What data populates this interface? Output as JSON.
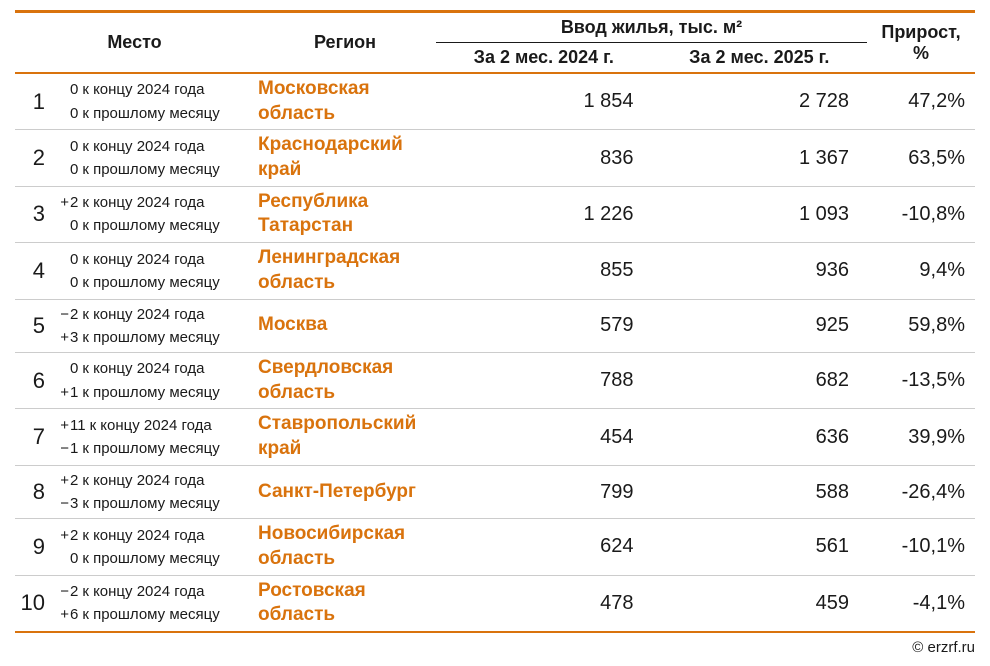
{
  "styling": {
    "accent_color": "#d9730d",
    "text_color": "#1a1a1a",
    "row_border_color": "#cccccc",
    "background_color": "#ffffff",
    "region_link_color": "#d9730d",
    "header_fontsize": 18,
    "rank_fontsize": 22,
    "change_fontsize": 15,
    "region_fontsize": 19,
    "num_fontsize": 20
  },
  "header": {
    "place": "Место",
    "region": "Регион",
    "housing_group": "Ввод жилья, тыс. м²",
    "period1": "За 2 мес. 2024 г.",
    "period2": "За 2 мес. 2025 г.",
    "growth": "Прирост, %"
  },
  "change_suffixes": {
    "year": "к концу 2024 года",
    "month": "к прошлому месяцу"
  },
  "rows": [
    {
      "rank": "1",
      "year_sign": "",
      "year_num": "0",
      "month_sign": "",
      "month_num": "0",
      "region": "Московская область",
      "v2024": "1 854",
      "v2025": "2 728",
      "growth": "47,2%"
    },
    {
      "rank": "2",
      "year_sign": "",
      "year_num": "0",
      "month_sign": "",
      "month_num": "0",
      "region": "Краснодарский край",
      "v2024": "836",
      "v2025": "1 367",
      "growth": "63,5%"
    },
    {
      "rank": "3",
      "year_sign": "+",
      "year_num": "2",
      "month_sign": "",
      "month_num": "0",
      "region": "Республика Татарстан",
      "v2024": "1 226",
      "v2025": "1 093",
      "growth": "-10,8%"
    },
    {
      "rank": "4",
      "year_sign": "",
      "year_num": "0",
      "month_sign": "",
      "month_num": "0",
      "region": "Ленинградская область",
      "v2024": "855",
      "v2025": "936",
      "growth": "9,4%"
    },
    {
      "rank": "5",
      "year_sign": "−",
      "year_num": "2",
      "month_sign": "+",
      "month_num": "3",
      "region": "Москва",
      "v2024": "579",
      "v2025": "925",
      "growth": "59,8%"
    },
    {
      "rank": "6",
      "year_sign": "",
      "year_num": "0",
      "month_sign": "+",
      "month_num": "1",
      "region": "Свердловская область",
      "v2024": "788",
      "v2025": "682",
      "growth": "-13,5%"
    },
    {
      "rank": "7",
      "year_sign": "+",
      "year_num": "11",
      "month_sign": "−",
      "month_num": "1",
      "region": "Ставропольский край",
      "v2024": "454",
      "v2025": "636",
      "growth": "39,9%"
    },
    {
      "rank": "8",
      "year_sign": "+",
      "year_num": "2",
      "month_sign": "−",
      "month_num": "3",
      "region": "Санкт-Петербург",
      "v2024": "799",
      "v2025": "588",
      "growth": "-26,4%"
    },
    {
      "rank": "9",
      "year_sign": "+",
      "year_num": "2",
      "month_sign": "",
      "month_num": "0",
      "region": "Новосибирская область",
      "v2024": "624",
      "v2025": "561",
      "growth": "-10,1%"
    },
    {
      "rank": "10",
      "year_sign": "−",
      "year_num": "2",
      "month_sign": "+",
      "month_num": "6",
      "region": "Ростовская область",
      "v2024": "478",
      "v2025": "459",
      "growth": "-4,1%"
    }
  ],
  "footer": {
    "credit": "© erzrf.ru"
  }
}
